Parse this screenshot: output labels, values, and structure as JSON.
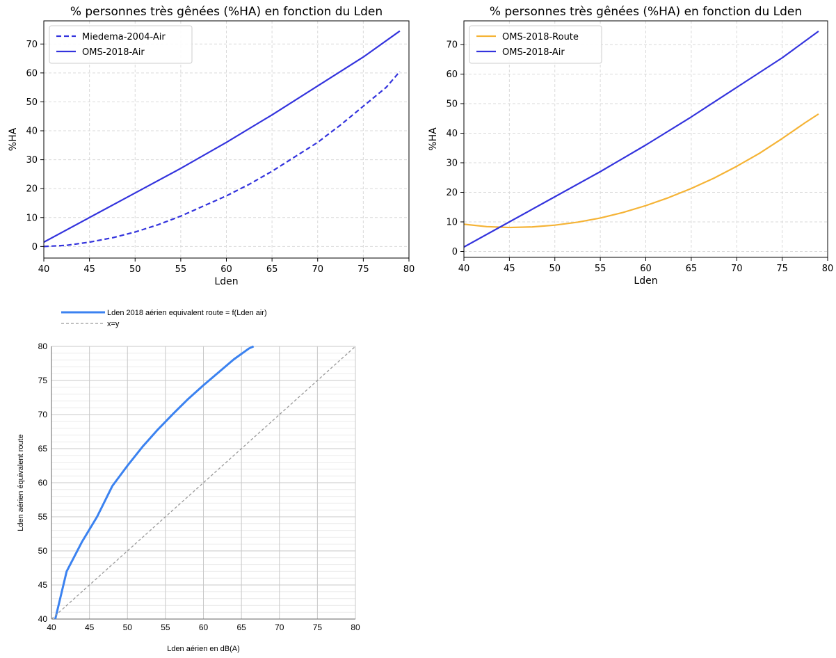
{
  "colors": {
    "blue": "#3333dd",
    "orange": "#f5b335",
    "blue3": "#3b82f0",
    "dashed3": "#999999"
  },
  "chart_data": [
    {
      "type": "line",
      "title": "% personnes très gênées (%HA) en fonction du Lden",
      "xlabel": "Lden",
      "ylabel": "%HA",
      "xlim": [
        40,
        80
      ],
      "ylim": [
        -4,
        78
      ],
      "xticks": [
        "40",
        "45",
        "50",
        "55",
        "60",
        "65",
        "70",
        "75",
        "80"
      ],
      "yticks": [
        "0",
        "10",
        "20",
        "30",
        "40",
        "50",
        "60",
        "70"
      ],
      "grid": true,
      "legend_position": "top-left",
      "series": [
        {
          "name": "Miedema-2004-Air",
          "style": "dashed",
          "color": "#3333dd",
          "x": [
            40,
            42.5,
            45,
            47.5,
            50,
            52.5,
            55,
            57.5,
            60,
            62.5,
            65,
            67.5,
            70,
            72.5,
            75,
            77.5,
            79
          ],
          "y": [
            0,
            0.4,
            1.5,
            3,
            5,
            7.5,
            10.5,
            14,
            17.5,
            21.5,
            26,
            31,
            36,
            42,
            48.5,
            55,
            60.5
          ]
        },
        {
          "name": "OMS-2018-Air",
          "style": "solid",
          "color": "#3333dd",
          "x": [
            40,
            45,
            50,
            55,
            60,
            65,
            70,
            75,
            79
          ],
          "y": [
            1.5,
            10,
            18.5,
            27,
            36,
            45.5,
            55.5,
            65.5,
            74.5
          ]
        }
      ]
    },
    {
      "type": "line",
      "title": "% personnes très gênées (%HA) en fonction du Lden",
      "xlabel": "Lden",
      "ylabel": "%HA",
      "xlim": [
        40,
        80
      ],
      "ylim": [
        -2,
        78
      ],
      "xticks": [
        "40",
        "45",
        "50",
        "55",
        "60",
        "65",
        "70",
        "75",
        "80"
      ],
      "yticks": [
        "0",
        "10",
        "20",
        "30",
        "40",
        "50",
        "60",
        "70"
      ],
      "grid": true,
      "legend_position": "top-left",
      "series": [
        {
          "name": "OMS-2018-Route",
          "style": "solid",
          "color": "#f5b335",
          "x": [
            40,
            42.5,
            45,
            47.5,
            50,
            52.5,
            55,
            57.5,
            60,
            62.5,
            65,
            67.5,
            70,
            72.5,
            75,
            77.5,
            79
          ],
          "y": [
            9.2,
            8.4,
            8.1,
            8.3,
            8.9,
            9.9,
            11.3,
            13.2,
            15.5,
            18.2,
            21.3,
            24.8,
            28.8,
            33.2,
            38.2,
            43.5,
            46.5
          ]
        },
        {
          "name": "OMS-2018-Air",
          "style": "solid",
          "color": "#3333dd",
          "x": [
            40,
            45,
            50,
            55,
            60,
            65,
            70,
            75,
            79
          ],
          "y": [
            1.5,
            10,
            18.5,
            27,
            36,
            45.5,
            55.5,
            65.5,
            74.5
          ]
        }
      ]
    },
    {
      "type": "line",
      "title": "",
      "xlabel": "Lden aérien en dB(A)",
      "ylabel": "Lden aérien équivalent route",
      "xlim": [
        40,
        80
      ],
      "ylim": [
        40,
        80
      ],
      "xticks": [
        "40",
        "45",
        "50",
        "55",
        "60",
        "65",
        "70",
        "75",
        "80"
      ],
      "yticks": [
        "40",
        "45",
        "50",
        "55",
        "60",
        "65",
        "70",
        "75",
        "80"
      ],
      "grid": true,
      "legend_position": "top",
      "series": [
        {
          "name": "Lden 2018 aérien equivalent route = f(Lden air)",
          "style": "solid",
          "color": "#3b82f0",
          "x": [
            40.5,
            42,
            44,
            46,
            48,
            50,
            52,
            54,
            56,
            58,
            60,
            62,
            64,
            66,
            66.6
          ],
          "y": [
            40,
            47,
            51.3,
            55,
            59.5,
            62.5,
            65.3,
            67.8,
            70.1,
            72.3,
            74.3,
            76.2,
            78.1,
            79.7,
            80
          ]
        },
        {
          "name": "x=y",
          "style": "dashed",
          "color": "#999999",
          "x": [
            40,
            80
          ],
          "y": [
            40,
            80
          ]
        }
      ]
    }
  ]
}
